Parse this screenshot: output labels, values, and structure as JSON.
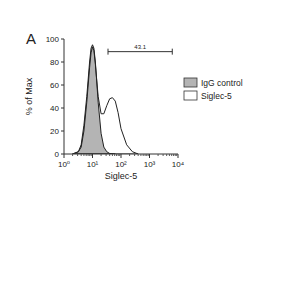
{
  "chart_data": {
    "type": "line",
    "panel": "A",
    "xlabel": "Siglec-5",
    "ylabel": "% of Max",
    "log": "x",
    "xlim": [
      1,
      10000
    ],
    "xticks": [
      {
        "value": 1,
        "label": "10⁰"
      },
      {
        "value": 10,
        "label": "10¹"
      },
      {
        "value": 100,
        "label": "10²"
      },
      {
        "value": 1000,
        "label": "10³"
      },
      {
        "value": 10000,
        "label": "10⁴"
      }
    ],
    "ylim": [
      0,
      100
    ],
    "yticks": [
      0,
      20,
      40,
      60,
      80,
      100
    ],
    "legend": "right",
    "gate": {
      "label": "43.1",
      "x": [
        35,
        6300
      ],
      "y": 89
    },
    "series": [
      {
        "name": "IgG control",
        "color": "#b4b4b4",
        "x": [
          2,
          3.2,
          4,
          5,
          6.3,
          7.9,
          8.9,
          10,
          11.2,
          12.6,
          15.8,
          20,
          25,
          31.6,
          40,
          63
        ],
        "values": [
          0,
          2,
          8,
          25,
          50,
          80,
          92,
          95,
          92,
          80,
          45,
          18,
          6,
          2,
          0.5,
          0
        ]
      },
      {
        "name": "Siglec-5",
        "color": "#ffffff",
        "x": [
          2,
          3.2,
          4,
          5,
          6.3,
          7.9,
          8.9,
          10,
          11.2,
          12.6,
          15.8,
          20,
          25,
          31.6,
          40,
          50,
          63,
          79,
          100,
          158,
          251,
          400
        ],
        "values": [
          0,
          2,
          6,
          20,
          45,
          75,
          88,
          93,
          90,
          78,
          50,
          35,
          35,
          42,
          48,
          49,
          46,
          36,
          22,
          8,
          2,
          0
        ]
      }
    ]
  }
}
